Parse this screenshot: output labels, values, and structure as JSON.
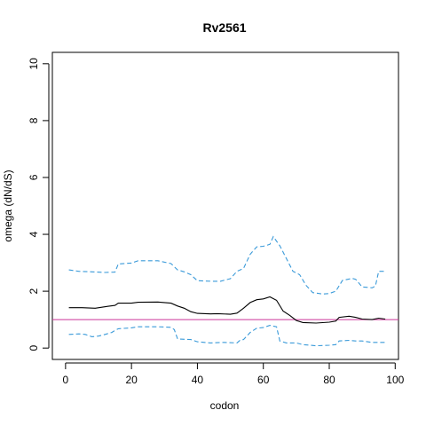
{
  "chart_data": {
    "type": "line",
    "title": "Rv2561",
    "xlabel": "codon",
    "ylabel": "omega (dN/dS)",
    "xlim": [
      -4,
      101
    ],
    "ylim": [
      -0.4,
      10.4
    ],
    "x_ticks": [
      0,
      20,
      40,
      60,
      80,
      100
    ],
    "y_ticks": [
      0,
      2,
      4,
      6,
      8,
      10
    ],
    "x_tick_labels": [
      "0",
      "20",
      "40",
      "60",
      "80",
      "100"
    ],
    "y_tick_labels": [
      "0",
      "2",
      "4",
      "6",
      "8",
      "10"
    ],
    "grid": false,
    "reference_line": {
      "y": 1,
      "color": "#cc3399"
    },
    "series": [
      {
        "role": "estimate",
        "color": "#000000",
        "dash": "solid",
        "points": [
          [
            1,
            1.42
          ],
          [
            5,
            1.42
          ],
          [
            9,
            1.4
          ],
          [
            13,
            1.47
          ],
          [
            15,
            1.5
          ],
          [
            16,
            1.58
          ],
          [
            20,
            1.58
          ],
          [
            22,
            1.61
          ],
          [
            28,
            1.62
          ],
          [
            32,
            1.58
          ],
          [
            34,
            1.48
          ],
          [
            36,
            1.4
          ],
          [
            38,
            1.28
          ],
          [
            40,
            1.22
          ],
          [
            44,
            1.2
          ],
          [
            46,
            1.21
          ],
          [
            50,
            1.19
          ],
          [
            52,
            1.23
          ],
          [
            54,
            1.4
          ],
          [
            56,
            1.6
          ],
          [
            58,
            1.7
          ],
          [
            60,
            1.73
          ],
          [
            62,
            1.8
          ],
          [
            64,
            1.68
          ],
          [
            66,
            1.3
          ],
          [
            68,
            1.15
          ],
          [
            70,
            0.97
          ],
          [
            72,
            0.9
          ],
          [
            76,
            0.88
          ],
          [
            80,
            0.91
          ],
          [
            82,
            0.95
          ],
          [
            83,
            1.08
          ],
          [
            86,
            1.12
          ],
          [
            88,
            1.08
          ],
          [
            90,
            1.02
          ],
          [
            93,
            1.0
          ],
          [
            95,
            1.05
          ],
          [
            97,
            1.02
          ]
        ]
      },
      {
        "role": "upper-bound",
        "color": "#3a9ad9",
        "dash": "dashed",
        "points": [
          [
            1,
            2.75
          ],
          [
            4,
            2.7
          ],
          [
            8,
            2.68
          ],
          [
            12,
            2.66
          ],
          [
            15,
            2.67
          ],
          [
            16,
            2.96
          ],
          [
            20,
            2.99
          ],
          [
            22,
            3.07
          ],
          [
            28,
            3.07
          ],
          [
            32,
            2.97
          ],
          [
            34,
            2.75
          ],
          [
            36,
            2.68
          ],
          [
            38,
            2.58
          ],
          [
            40,
            2.37
          ],
          [
            44,
            2.35
          ],
          [
            47,
            2.35
          ],
          [
            50,
            2.44
          ],
          [
            52,
            2.7
          ],
          [
            54,
            2.8
          ],
          [
            56,
            3.3
          ],
          [
            58,
            3.56
          ],
          [
            60,
            3.58
          ],
          [
            62,
            3.65
          ],
          [
            63,
            3.92
          ],
          [
            65,
            3.6
          ],
          [
            67,
            3.15
          ],
          [
            69,
            2.7
          ],
          [
            71,
            2.58
          ],
          [
            73,
            2.2
          ],
          [
            75,
            1.95
          ],
          [
            78,
            1.9
          ],
          [
            80,
            1.92
          ],
          [
            82,
            2.0
          ],
          [
            84,
            2.38
          ],
          [
            87,
            2.45
          ],
          [
            88,
            2.42
          ],
          [
            90,
            2.15
          ],
          [
            93,
            2.12
          ],
          [
            94,
            2.18
          ],
          [
            95,
            2.7
          ],
          [
            97,
            2.7
          ]
        ]
      },
      {
        "role": "lower-bound",
        "color": "#3a9ad9",
        "dash": "dashed",
        "points": [
          [
            1,
            0.48
          ],
          [
            4,
            0.5
          ],
          [
            6,
            0.48
          ],
          [
            8,
            0.4
          ],
          [
            10,
            0.42
          ],
          [
            12,
            0.48
          ],
          [
            14,
            0.55
          ],
          [
            15,
            0.62
          ],
          [
            16,
            0.68
          ],
          [
            20,
            0.71
          ],
          [
            22,
            0.75
          ],
          [
            28,
            0.75
          ],
          [
            32,
            0.73
          ],
          [
            33,
            0.65
          ],
          [
            34,
            0.32
          ],
          [
            38,
            0.3
          ],
          [
            40,
            0.22
          ],
          [
            44,
            0.18
          ],
          [
            48,
            0.2
          ],
          [
            52,
            0.18
          ],
          [
            53,
            0.28
          ],
          [
            54,
            0.3
          ],
          [
            56,
            0.55
          ],
          [
            58,
            0.7
          ],
          [
            60,
            0.72
          ],
          [
            62,
            0.8
          ],
          [
            64,
            0.75
          ],
          [
            65,
            0.25
          ],
          [
            67,
            0.18
          ],
          [
            70,
            0.18
          ],
          [
            72,
            0.12
          ],
          [
            76,
            0.08
          ],
          [
            80,
            0.1
          ],
          [
            82,
            0.12
          ],
          [
            83,
            0.25
          ],
          [
            86,
            0.27
          ],
          [
            88,
            0.25
          ],
          [
            90,
            0.25
          ],
          [
            93,
            0.2
          ],
          [
            97,
            0.2
          ]
        ]
      }
    ]
  }
}
